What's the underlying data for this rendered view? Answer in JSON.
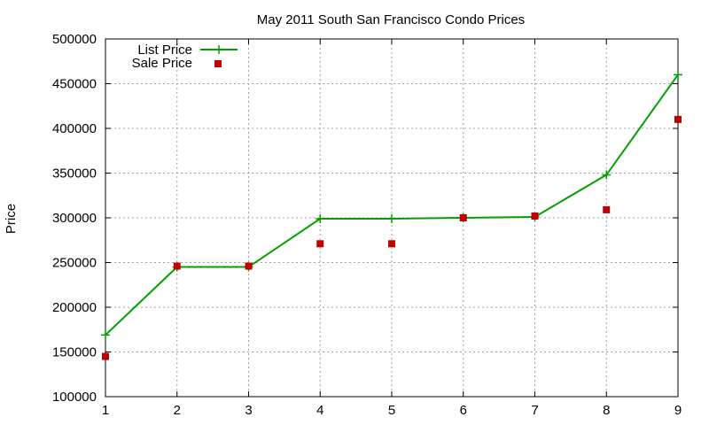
{
  "chart_data": {
    "type": "line",
    "title": "May 2011 South San Francisco Condo Prices",
    "xlabel": "",
    "ylabel": "Price",
    "x": [
      1,
      2,
      3,
      4,
      5,
      6,
      7,
      8,
      9
    ],
    "xlim": [
      1,
      9
    ],
    "ylim": [
      100000,
      500000
    ],
    "xticks": [
      "1",
      "2",
      "3",
      "4",
      "5",
      "6",
      "7",
      "8",
      "9"
    ],
    "yticks": [
      "100000",
      "150000",
      "200000",
      "250000",
      "300000",
      "350000",
      "400000",
      "450000",
      "500000"
    ],
    "grid": true,
    "legend_position": "top-left",
    "series": [
      {
        "name": "List Price",
        "style": "line+cross",
        "color": "#00a000",
        "values": [
          169000,
          245000,
          245000,
          299000,
          299000,
          300000,
          301000,
          348000,
          460000
        ]
      },
      {
        "name": "Sale Price",
        "style": "square",
        "color": "#c00000",
        "values": [
          145000,
          246000,
          246000,
          271000,
          271000,
          300000,
          302000,
          309000,
          410000
        ]
      }
    ]
  }
}
